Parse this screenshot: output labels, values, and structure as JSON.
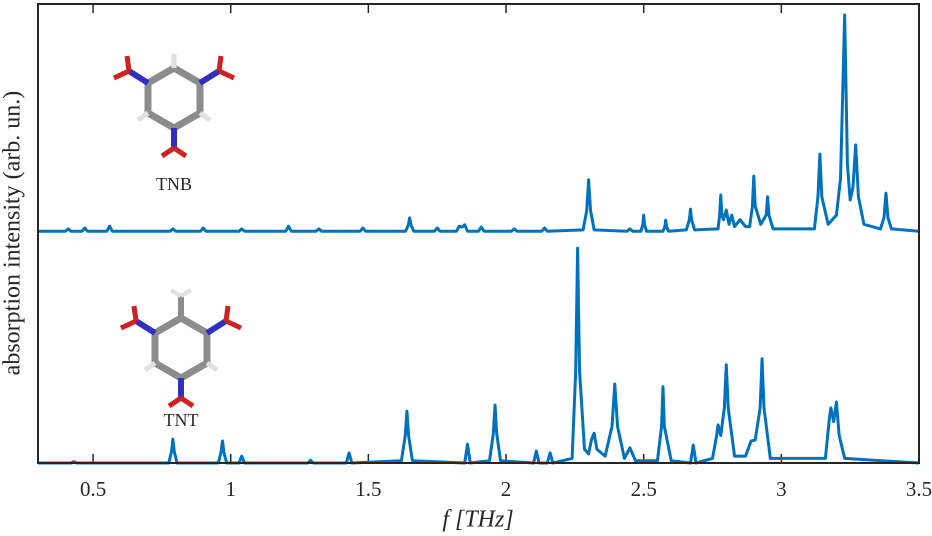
{
  "chart_data": {
    "type": "line",
    "xlabel": "f [THz]",
    "ylabel": "absorption intensity (arb. un.)",
    "xlim": [
      0.3,
      3.5
    ],
    "ylim": [
      0,
      100
    ],
    "xticks": [
      0.5,
      1,
      1.5,
      2,
      2.5,
      3,
      3.5
    ],
    "grid": false,
    "series": [
      {
        "name": "TNB",
        "color": "#0072bd",
        "x": [
          0.3,
          0.4,
          0.41,
          0.42,
          0.46,
          0.47,
          0.48,
          0.55,
          0.56,
          0.57,
          0.78,
          0.79,
          0.8,
          0.89,
          0.9,
          0.91,
          1.03,
          1.04,
          1.05,
          1.2,
          1.21,
          1.22,
          1.31,
          1.32,
          1.33,
          1.47,
          1.48,
          1.49,
          1.635,
          1.645,
          1.65,
          1.655,
          1.665,
          1.74,
          1.75,
          1.76,
          1.82,
          1.83,
          1.84,
          1.85,
          1.86,
          1.9,
          1.91,
          1.92,
          2.02,
          2.03,
          2.04,
          2.13,
          2.14,
          2.15,
          2.28,
          2.293,
          2.3,
          2.307,
          2.32,
          2.44,
          2.45,
          2.46,
          2.49,
          2.497,
          2.5,
          2.503,
          2.51,
          2.57,
          2.577,
          2.58,
          2.583,
          2.59,
          2.655,
          2.666,
          2.67,
          2.674,
          2.685,
          2.77,
          2.776,
          2.78,
          2.784,
          2.79,
          2.8,
          2.81,
          2.82,
          2.83,
          2.85,
          2.87,
          2.885,
          2.895,
          2.9,
          2.905,
          2.925,
          2.945,
          2.95,
          2.955,
          2.97,
          3.12,
          3.133,
          3.14,
          3.147,
          3.17,
          3.2,
          3.215,
          3.23,
          3.24,
          3.25,
          3.26,
          3.27,
          3.28,
          3.3,
          3.36,
          3.373,
          3.38,
          3.387,
          3.4,
          3.5
        ],
        "values": [
          50.5,
          50.5,
          51,
          50.5,
          50.5,
          51.2,
          50.5,
          50.5,
          51.6,
          50.5,
          50.5,
          51,
          50.5,
          50.5,
          51.2,
          50.5,
          50.5,
          51,
          50.5,
          50.5,
          51.6,
          50.5,
          50.5,
          51,
          50.5,
          50.5,
          51.2,
          50.5,
          50.5,
          51.8,
          53.4,
          51.8,
          50.5,
          50.5,
          51.2,
          50.5,
          50.5,
          51.6,
          51.4,
          51.9,
          50.5,
          50.5,
          51.4,
          50.5,
          50.5,
          51,
          50.5,
          50.5,
          51.2,
          50.5,
          50.8,
          55,
          61.7,
          55,
          50.8,
          50.5,
          51,
          50.5,
          50.5,
          52,
          54,
          52,
          50.5,
          50.5,
          51.5,
          52.9,
          51.5,
          50.5,
          50.8,
          53,
          55.3,
          53,
          50.8,
          51,
          54,
          58.4,
          54,
          53,
          55.1,
          52,
          54,
          51.5,
          53,
          51.5,
          51.5,
          56,
          62.5,
          56,
          52,
          54,
          58,
          54,
          51,
          51,
          58,
          67.3,
          58,
          52,
          54,
          62,
          97.6,
          65,
          57.3,
          60,
          69.3,
          58,
          52,
          51,
          53.5,
          58.8,
          53.5,
          51,
          50.5
        ]
      },
      {
        "name": "TNT",
        "color": "#0072bd",
        "x": [
          0.3,
          0.42,
          0.43,
          0.44,
          0.775,
          0.785,
          0.79,
          0.795,
          0.805,
          0.955,
          0.965,
          0.97,
          0.975,
          0.985,
          1.03,
          1.04,
          1.05,
          1.28,
          1.29,
          1.3,
          1.42,
          1.43,
          1.44,
          1.62,
          1.634,
          1.64,
          1.646,
          1.66,
          1.85,
          1.86,
          1.87,
          1.94,
          1.954,
          1.96,
          1.966,
          1.98,
          2.1,
          2.11,
          2.12,
          2.15,
          2.16,
          2.17,
          2.24,
          2.253,
          2.26,
          2.267,
          2.285,
          2.3,
          2.31,
          2.32,
          2.33,
          2.36,
          2.385,
          2.395,
          2.405,
          2.43,
          2.45,
          2.47,
          2.55,
          2.565,
          2.57,
          2.575,
          2.6,
          2.67,
          2.68,
          2.69,
          2.75,
          2.765,
          2.77,
          2.78,
          2.793,
          2.8,
          2.807,
          2.83,
          2.87,
          2.89,
          2.905,
          2.923,
          2.93,
          2.937,
          2.96,
          3.16,
          3.175,
          3.18,
          3.19,
          3.2,
          3.21,
          3.23,
          3.5
        ],
        "values": [
          0,
          0,
          0.3,
          0,
          0,
          2.5,
          5.2,
          2.5,
          0,
          0,
          2.4,
          4.8,
          2.4,
          0,
          0,
          1.5,
          0,
          0,
          0.6,
          0,
          0,
          2.2,
          0,
          0.5,
          6,
          11.3,
          6,
          0.5,
          0,
          4.1,
          0,
          0.5,
          6.5,
          12.6,
          6.5,
          0.5,
          0,
          2.6,
          0,
          0,
          2.2,
          0,
          1,
          20,
          46.8,
          20,
          3,
          2,
          5,
          6.5,
          3,
          1.5,
          8,
          17.2,
          8,
          1,
          3.3,
          0.5,
          0.5,
          8,
          16.6,
          8,
          0.5,
          0,
          3.9,
          0,
          1,
          6,
          8.3,
          6,
          12,
          21.4,
          12,
          1.5,
          1.5,
          4.8,
          5,
          12,
          22.7,
          12,
          1,
          1,
          10,
          12,
          9,
          13.3,
          6,
          1,
          0
        ]
      }
    ]
  }
}
